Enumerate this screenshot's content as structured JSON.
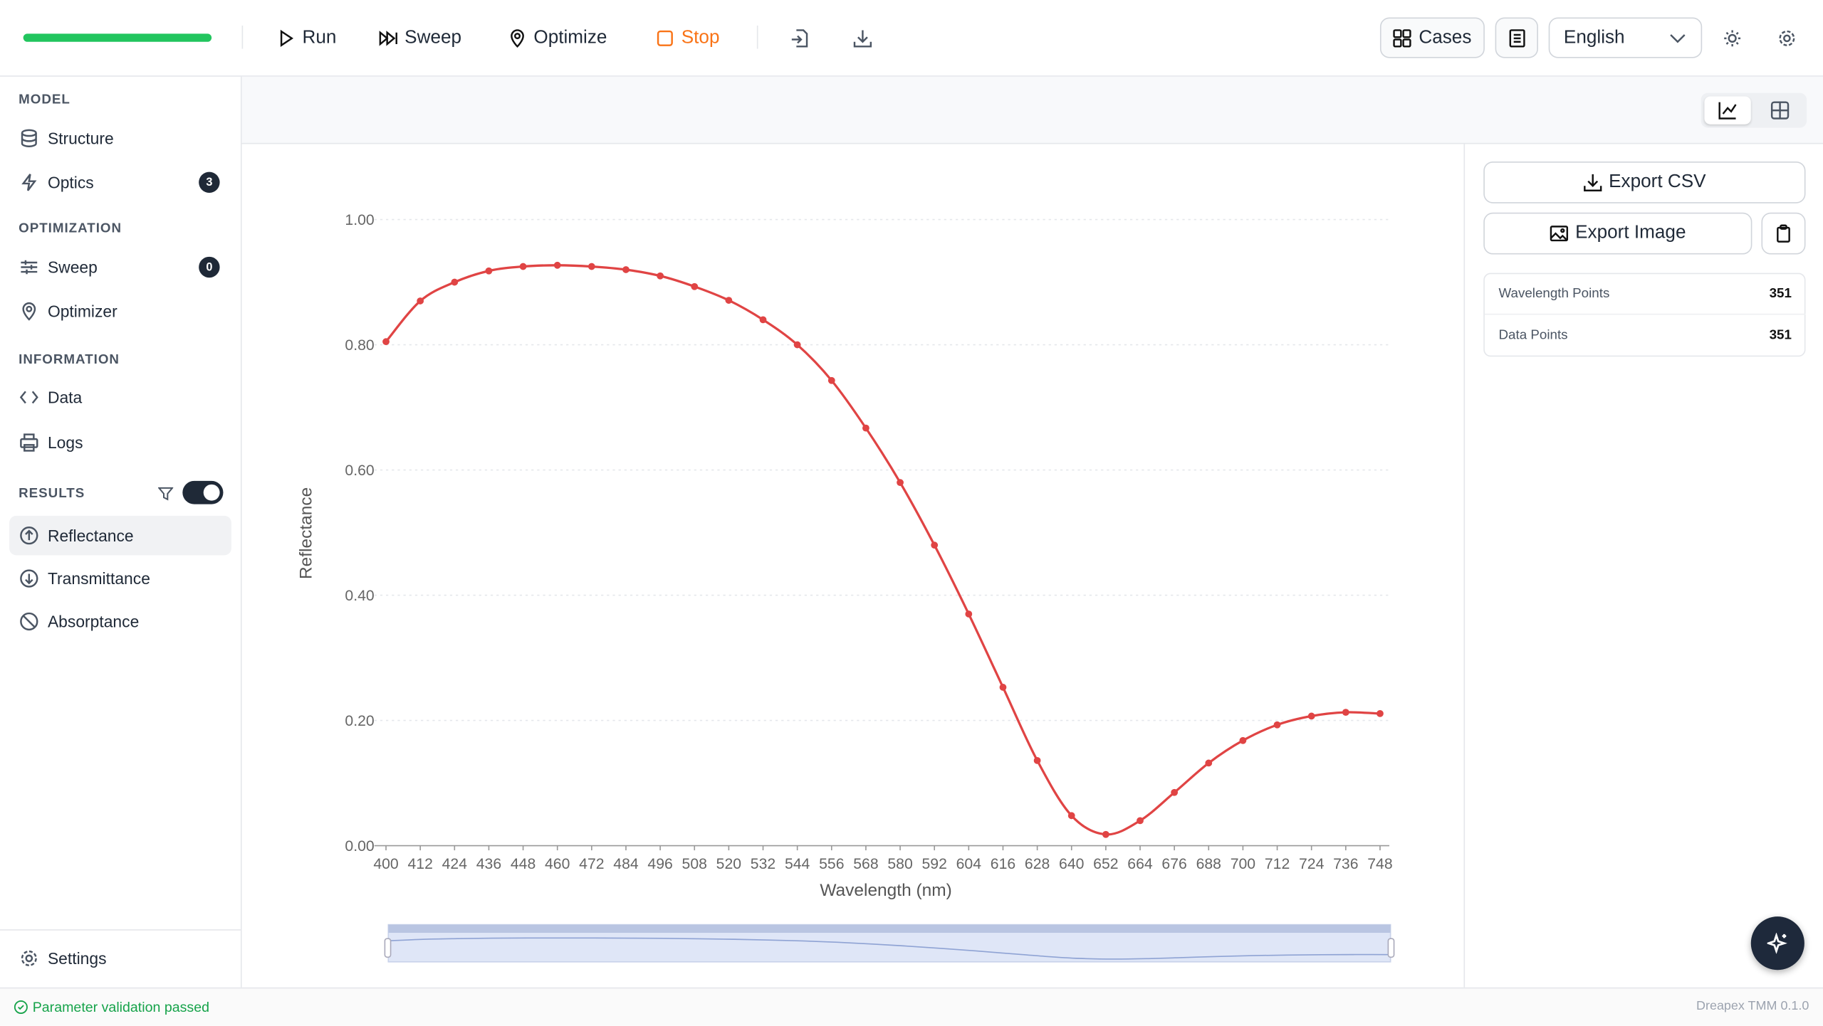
{
  "toolbar": {
    "run": "Run",
    "sweep": "Sweep",
    "optimize": "Optimize",
    "stop": "Stop",
    "cases": "Cases",
    "language": "English"
  },
  "sidebar": {
    "sections": [
      {
        "title": "MODEL",
        "items": [
          {
            "label": "Structure"
          },
          {
            "label": "Optics",
            "badge": 3
          }
        ]
      },
      {
        "title": "OPTIMIZATION",
        "items": [
          {
            "label": "Sweep",
            "badge": 0
          },
          {
            "label": "Optimizer"
          }
        ]
      },
      {
        "title": "INFORMATION",
        "items": [
          {
            "label": "Data"
          },
          {
            "label": "Logs"
          }
        ]
      },
      {
        "title": "RESULTS",
        "items": [
          {
            "label": "Reflectance"
          },
          {
            "label": "Transmittance"
          },
          {
            "label": "Absorptance"
          }
        ]
      }
    ],
    "settings": "Settings"
  },
  "panel": {
    "export_csv": "Export CSV",
    "export_image": "Export Image",
    "stats": [
      {
        "label": "Wavelength Points",
        "value": 351
      },
      {
        "label": "Data Points",
        "value": 351
      }
    ]
  },
  "status": {
    "message": "Parameter validation passed",
    "version": "Dreapex TMM 0.1.0"
  },
  "chart_data": {
    "type": "line",
    "x_label": "Wavelength (nm)",
    "y_label": "Reflectance",
    "color": "#e04444",
    "grid": true,
    "x": [
      400,
      412,
      424,
      436,
      448,
      460,
      472,
      484,
      496,
      508,
      520,
      532,
      544,
      556,
      568,
      580,
      592,
      604,
      616,
      628,
      640,
      652,
      664,
      676,
      688,
      700,
      712,
      724,
      736,
      748
    ],
    "values": [
      0.805,
      0.87,
      0.9,
      0.918,
      0.925,
      0.927,
      0.925,
      0.92,
      0.91,
      0.893,
      0.871,
      0.84,
      0.8,
      0.743,
      0.667,
      0.58,
      0.48,
      0.37,
      0.253,
      0.136,
      0.048,
      0.018,
      0.04,
      0.085,
      0.132,
      0.168,
      0.193,
      0.207,
      0.213,
      0.211
    ],
    "xlim": [
      400,
      748
    ],
    "xticks": [
      400,
      412,
      424,
      436,
      448,
      460,
      472,
      484,
      496,
      508,
      520,
      532,
      544,
      556,
      568,
      580,
      592,
      604,
      616,
      628,
      640,
      652,
      664,
      676,
      688,
      700,
      712,
      724,
      736,
      748
    ],
    "ylim": [
      0,
      1
    ],
    "yticks": [
      {
        "value": 0,
        "label": "0.00"
      },
      {
        "value": 0.2,
        "label": "0.20"
      },
      {
        "value": 0.4,
        "label": "0.40"
      },
      {
        "value": 0.6,
        "label": "0.60"
      },
      {
        "value": 0.8,
        "label": "0.80"
      },
      {
        "value": 1,
        "label": "1.00"
      }
    ]
  }
}
